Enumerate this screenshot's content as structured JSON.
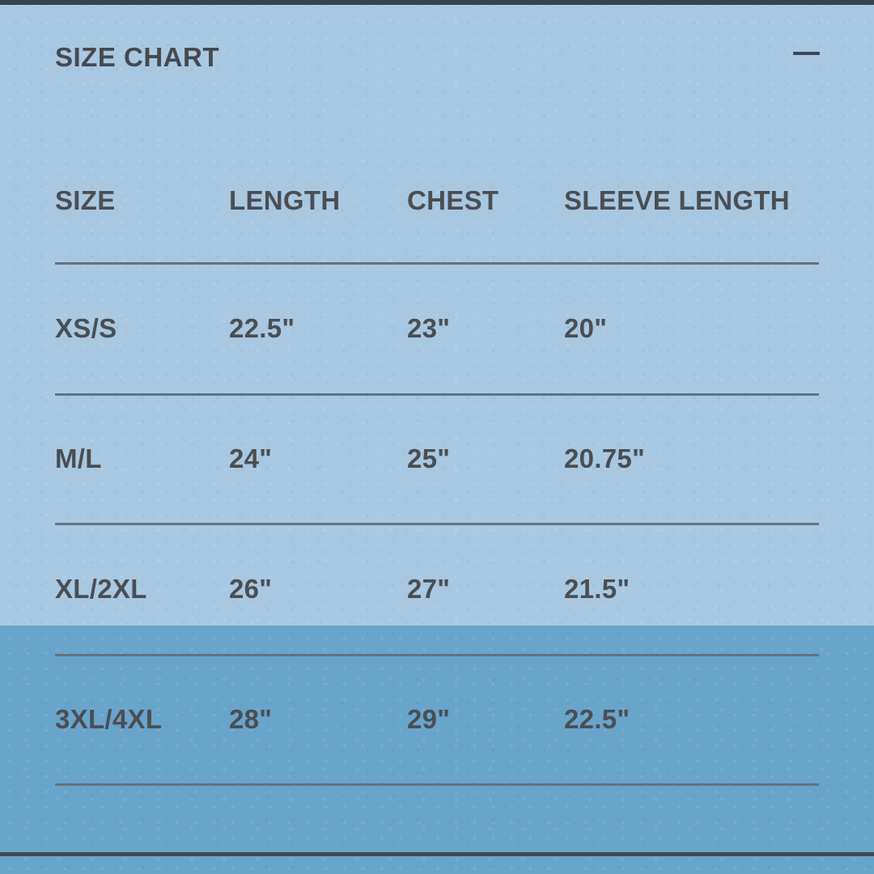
{
  "panel": {
    "title": "SIZE CHART",
    "collapse_icon": "minus-icon"
  },
  "table": {
    "columns": [
      "SIZE",
      "LENGTH",
      "CHEST",
      "SLEEVE LENGTH"
    ],
    "rows": [
      {
        "size": "XS/S",
        "length": "22.5\"",
        "chest": "23\"",
        "sleeve_length": "20\""
      },
      {
        "size": "M/L",
        "length": "24\"",
        "chest": "25\"",
        "sleeve_length": "20.75\""
      },
      {
        "size": "XL/2XL",
        "length": "26\"",
        "chest": "27\"",
        "sleeve_length": "21.5\""
      },
      {
        "size": "3XL/4XL",
        "length": "28\"",
        "chest": "29\"",
        "sleeve_length": "22.5\""
      }
    ]
  },
  "colors": {
    "background_top": "#a8c8e1",
    "background_bottom": "#69a4cb",
    "text": "#4a4e53",
    "divider": "#64737e",
    "accent_dark": "#3a434e"
  }
}
